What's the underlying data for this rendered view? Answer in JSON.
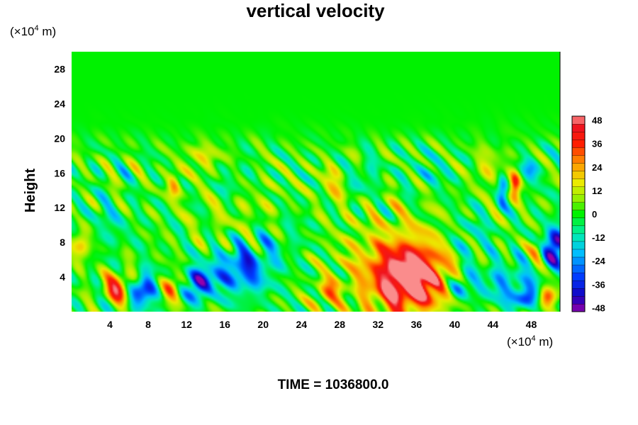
{
  "chart_data": {
    "type": "heatmap",
    "title": "vertical velocity",
    "ylabel": "Height",
    "x_unit_prefix": "(×10",
    "x_unit_exp": "4",
    "x_unit_suffix": " m)",
    "y_unit_prefix": "(×10",
    "y_unit_exp": "4",
    "y_unit_suffix": " m)",
    "xlim": [
      0,
      51
    ],
    "ylim": [
      0,
      30
    ],
    "x_ticks": [
      4,
      8,
      12,
      16,
      20,
      24,
      28,
      32,
      36,
      40,
      44,
      48
    ],
    "y_ticks": [
      4,
      8,
      12,
      16,
      20,
      24,
      28
    ],
    "colorbar": {
      "min": -50,
      "max": 50,
      "ticks": [
        48,
        36,
        24,
        12,
        0,
        -12,
        -24,
        -36,
        -48
      ]
    },
    "features": [
      {
        "x": 1.2,
        "y": 8.2,
        "value": 26,
        "sx": 0.7,
        "sy": 1.4
      },
      {
        "x": 5.0,
        "y": 2.8,
        "value": 38,
        "sx": 1.1,
        "sy": 1.2
      },
      {
        "x": 7.4,
        "y": 2.5,
        "value": -42,
        "sx": 1.0,
        "sy": 1.3
      },
      {
        "x": 10.4,
        "y": 2.7,
        "value": 28,
        "sx": 0.8,
        "sy": 1.0
      },
      {
        "x": 13.2,
        "y": 3.2,
        "value": -38,
        "sx": 1.0,
        "sy": 1.3
      },
      {
        "x": 16.6,
        "y": 4.6,
        "value": -22,
        "sx": 1.8,
        "sy": 1.7
      },
      {
        "x": 19.0,
        "y": 5.5,
        "value": -18,
        "sx": 1.8,
        "sy": 2.4
      },
      {
        "x": 10.7,
        "y": 14.5,
        "value": 22,
        "sx": 0.5,
        "sy": 1.1
      },
      {
        "x": 13.7,
        "y": 17.8,
        "value": 14,
        "sx": 1.4,
        "sy": 1.2
      },
      {
        "x": 16.8,
        "y": 14.8,
        "value": -10,
        "sx": 1.3,
        "sy": 1.6
      },
      {
        "x": 18.0,
        "y": 11.5,
        "value": 8,
        "sx": 3.5,
        "sy": 3.0
      },
      {
        "x": 26.7,
        "y": 2.2,
        "value": 24,
        "sx": 0.8,
        "sy": 1.0
      },
      {
        "x": 27.3,
        "y": 14.8,
        "value": 14,
        "sx": 1.0,
        "sy": 1.6
      },
      {
        "x": 30.5,
        "y": 15.5,
        "value": -12,
        "sx": 1.0,
        "sy": 1.3
      },
      {
        "x": 35.4,
        "y": 3.8,
        "value": 46,
        "sx": 2.3,
        "sy": 2.3
      },
      {
        "x": 34.2,
        "y": 4.8,
        "value": 26,
        "sx": 4.0,
        "sy": 4.0
      },
      {
        "x": 40.6,
        "y": 3.0,
        "value": -26,
        "sx": 0.8,
        "sy": 1.0
      },
      {
        "x": 45.2,
        "y": 3.2,
        "value": -18,
        "sx": 2.5,
        "sy": 1.8
      },
      {
        "x": 47.5,
        "y": 1.6,
        "value": -30,
        "sx": 0.9,
        "sy": 0.8
      },
      {
        "x": 49.6,
        "y": 1.6,
        "value": 36,
        "sx": 0.7,
        "sy": 0.9
      },
      {
        "x": 46.3,
        "y": 14.5,
        "value": 34,
        "sx": 0.4,
        "sy": 1.1
      },
      {
        "x": 45.0,
        "y": 14.0,
        "value": -24,
        "sx": 0.4,
        "sy": 1.4
      },
      {
        "x": 48.0,
        "y": 16.4,
        "value": -18,
        "sx": 0.7,
        "sy": 1.0
      },
      {
        "x": 50.5,
        "y": 7.6,
        "value": -48,
        "sx": 0.8,
        "sy": 1.6
      },
      {
        "x": 48.7,
        "y": 7.3,
        "value": 18,
        "sx": 0.5,
        "sy": 1.0
      },
      {
        "x": 43.5,
        "y": 16.5,
        "value": 12,
        "sx": 1.4,
        "sy": 1.6
      },
      {
        "x": 37.5,
        "y": 16.0,
        "value": -8,
        "sx": 1.8,
        "sy": 1.4
      },
      {
        "x": 3.0,
        "y": 10.0,
        "value": -10,
        "sx": 2.0,
        "sy": 1.8
      },
      {
        "x": 22.5,
        "y": 9.0,
        "value": -6,
        "sx": 2.0,
        "sy": 2.5
      },
      {
        "x": 41.5,
        "y": 8.5,
        "value": -12,
        "sx": 1.5,
        "sy": 2.0
      }
    ]
  },
  "time_label": "TIME = 1036800.0"
}
